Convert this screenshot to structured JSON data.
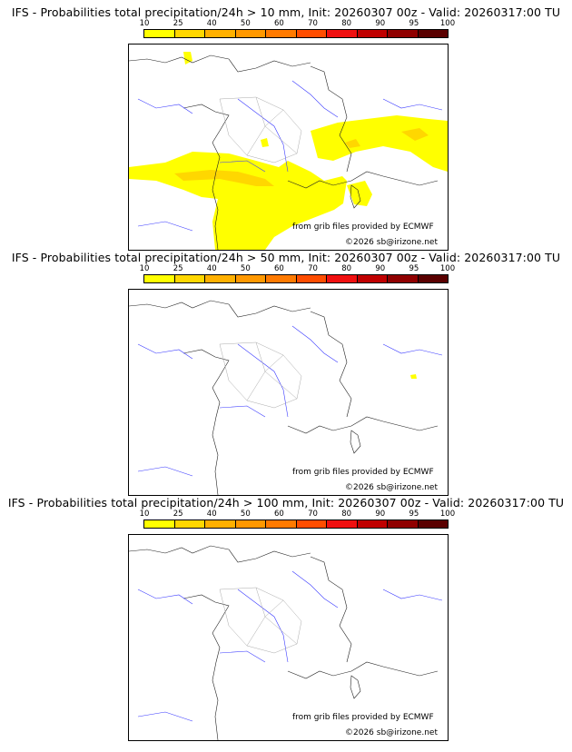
{
  "colorbar": {
    "ticks": [
      "10",
      "25",
      "40",
      "50",
      "60",
      "70",
      "80",
      "90",
      "95",
      "100"
    ],
    "colors": [
      "#ffff00",
      "#ffd700",
      "#ffb000",
      "#ff9800",
      "#ff7a00",
      "#ff4d00",
      "#f01010",
      "#c00000",
      "#900000",
      "#5a0000"
    ]
  },
  "panels": [
    {
      "title": "IFS - Probabilities total precipitation/24h > 10 mm, Init: 20260307 00z - Valid: 20260317:00 TU",
      "source": "from grib files provided by ECMWF",
      "copyright": "©2026 sb@irizone.net"
    },
    {
      "title": "IFS - Probabilities total precipitation/24h > 50 mm, Init: 20260307 00z - Valid: 20260317:00 TU",
      "source": "from grib files provided by ECMWF",
      "copyright": "©2026 sb@irizone.net"
    },
    {
      "title": "IFS - Probabilities total precipitation/24h > 100 mm, Init: 20260307 00z - Valid: 20260317:00 TU",
      "source": "from grib files provided by ECMWF",
      "copyright": "©2026 sb@irizone.net"
    }
  ]
}
